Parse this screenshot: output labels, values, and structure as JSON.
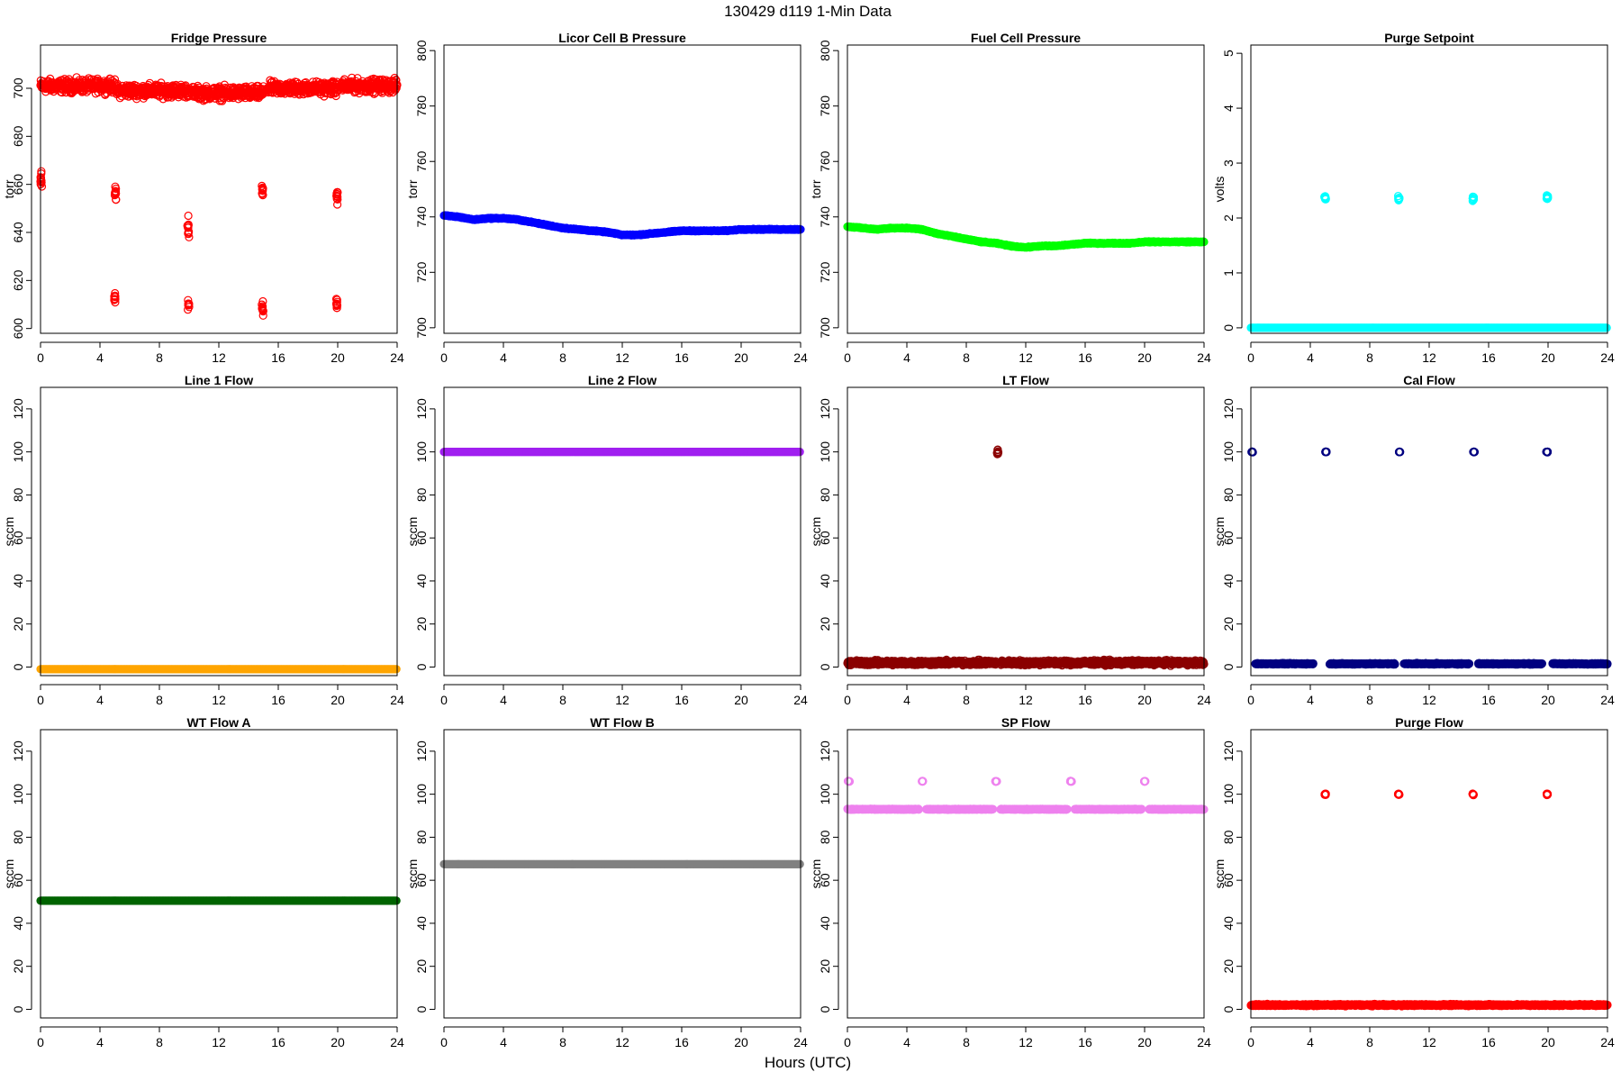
{
  "title": "130429   d119   1-Min Data",
  "x_label": "Hours (UTC)",
  "chart_data": [
    {
      "type": "scatter",
      "title": "Fridge Pressure",
      "ylabel": "torr",
      "color": "#ff0000",
      "marker": "open-circle",
      "xlim": [
        0,
        24
      ],
      "ylim": [
        598,
        718
      ],
      "x_ticks": [
        0,
        4,
        8,
        12,
        16,
        20,
        24
      ],
      "y_ticks": [
        600,
        620,
        640,
        660,
        680,
        700
      ],
      "series": [
        {
          "name": "",
          "segments": [
            [
              0.0,
              5.0,
              701,
              4
            ],
            [
              5.1,
              10.0,
              699,
              4
            ],
            [
              10.2,
              15.0,
              698,
              4
            ],
            [
              15.2,
              20.0,
              700,
              4
            ],
            [
              20.2,
              24.0,
              701,
              4
            ]
          ],
          "clusters": [
            [
              0.05,
              662,
              5
            ],
            [
              5.05,
              657,
              5
            ],
            [
              9.95,
              642,
              10
            ],
            [
              14.95,
              657,
              4
            ],
            [
              19.95,
              655,
              4
            ],
            [
              5.0,
              613,
              3
            ],
            [
              9.95,
              610,
              3
            ],
            [
              14.95,
              608,
              4
            ],
            [
              19.95,
              610,
              3
            ]
          ]
        }
      ]
    },
    {
      "type": "scatter",
      "title": "Licor Cell B Pressure",
      "ylabel": "torr",
      "color": "#0000ff",
      "marker": "open-circle",
      "xlim": [
        0,
        24
      ],
      "ylim": [
        698,
        802
      ],
      "x_ticks": [
        0,
        4,
        8,
        12,
        16,
        20,
        24
      ],
      "y_ticks": [
        700,
        720,
        740,
        760,
        780,
        800
      ],
      "series": [
        {
          "name": "",
          "x": [
            0,
            1,
            2,
            3,
            4,
            5,
            6,
            7,
            8,
            9,
            10,
            11,
            12,
            13,
            14,
            15,
            16,
            17,
            18,
            19,
            20,
            21,
            22,
            23,
            24
          ],
          "y": [
            740.5,
            740,
            739,
            739.5,
            739.5,
            739,
            738,
            737,
            736,
            735.5,
            735,
            734.5,
            733.5,
            733.5,
            734,
            734.5,
            735,
            735,
            735,
            735,
            735.5,
            735.5,
            735.5,
            735.5,
            735.5
          ]
        }
      ]
    },
    {
      "type": "scatter",
      "title": "Fuel Cell Pressure",
      "ylabel": "torr",
      "color": "#00ff00",
      "marker": "open-circle",
      "xlim": [
        0,
        24
      ],
      "ylim": [
        698,
        802
      ],
      "x_ticks": [
        0,
        4,
        8,
        12,
        16,
        20,
        24
      ],
      "y_ticks": [
        700,
        720,
        740,
        760,
        780,
        800
      ],
      "series": [
        {
          "name": "",
          "x": [
            0,
            1,
            2,
            3,
            4,
            5,
            6,
            7,
            8,
            9,
            10,
            11,
            12,
            13,
            14,
            15,
            16,
            17,
            18,
            19,
            20,
            21,
            22,
            23,
            24
          ],
          "y": [
            736.5,
            736,
            735.5,
            736,
            736,
            735.5,
            734,
            733,
            732,
            731,
            730.5,
            729.5,
            729,
            729.5,
            729.5,
            730,
            730.5,
            730.5,
            730.5,
            730.5,
            731,
            731,
            731,
            731,
            731
          ]
        }
      ]
    },
    {
      "type": "scatter",
      "title": "Purge Setpoint",
      "ylabel": "volts",
      "color": "#00ffff",
      "marker": "open-circle",
      "xlim": [
        0,
        24
      ],
      "ylim": [
        -0.1,
        5.15
      ],
      "x_ticks": [
        0,
        4,
        8,
        12,
        16,
        20,
        24
      ],
      "y_ticks": [
        0,
        1,
        2,
        3,
        4,
        5
      ],
      "series": [
        {
          "name": "",
          "line": [
            0,
            24,
            0
          ],
          "clusters": [
            [
              5.0,
              2.36,
              0.06
            ],
            [
              9.95,
              2.36,
              0.06
            ],
            [
              14.95,
              2.36,
              0.06
            ],
            [
              19.95,
              2.38,
              0.06
            ]
          ]
        }
      ]
    },
    {
      "type": "scatter",
      "title": "Line 1 Flow",
      "ylabel": "sccm",
      "color": "#ffa500",
      "marker": "open-circle",
      "xlim": [
        0,
        24
      ],
      "ylim": [
        -4,
        130
      ],
      "x_ticks": [
        0,
        4,
        8,
        12,
        16,
        20,
        24
      ],
      "y_ticks": [
        0,
        20,
        40,
        60,
        80,
        100,
        120
      ],
      "series": [
        {
          "name": "",
          "line": [
            0,
            24,
            -1
          ]
        }
      ]
    },
    {
      "type": "scatter",
      "title": "Line 2 Flow",
      "ylabel": "sccm",
      "color": "#a020f0",
      "marker": "open-circle",
      "xlim": [
        0,
        24
      ],
      "ylim": [
        -4,
        130
      ],
      "x_ticks": [
        0,
        4,
        8,
        12,
        16,
        20,
        24
      ],
      "y_ticks": [
        0,
        20,
        40,
        60,
        80,
        100,
        120
      ],
      "series": [
        {
          "name": "",
          "line": [
            0,
            24,
            100
          ]
        }
      ]
    },
    {
      "type": "scatter",
      "title": "LT Flow",
      "ylabel": "sccm",
      "color": "#8b0000",
      "marker": "open-circle",
      "xlim": [
        0,
        24
      ],
      "ylim": [
        -4,
        130
      ],
      "x_ticks": [
        0,
        4,
        8,
        12,
        16,
        20,
        24
      ],
      "y_ticks": [
        0,
        20,
        40,
        60,
        80,
        100,
        120
      ],
      "series": [
        {
          "name": "",
          "segments": [
            [
              0.0,
              10.0,
              2,
              1.6
            ],
            [
              10.3,
              24.0,
              2,
              1.6
            ]
          ],
          "clusters": [
            [
              10.1,
              100,
              1.5
            ]
          ]
        }
      ]
    },
    {
      "type": "scatter",
      "title": "Cal Flow",
      "ylabel": "sccm",
      "color": "#000080",
      "marker": "open-circle",
      "xlim": [
        0,
        24
      ],
      "ylim": [
        -4,
        130
      ],
      "x_ticks": [
        0,
        4,
        8,
        12,
        16,
        20,
        24
      ],
      "y_ticks": [
        0,
        20,
        40,
        60,
        80,
        100,
        120
      ],
      "series": [
        {
          "name": "",
          "segments": [
            [
              0.3,
              4.2,
              1.5,
              0.4
            ],
            [
              5.3,
              9.7,
              1.5,
              0.4
            ],
            [
              10.3,
              14.7,
              1.5,
              0.4
            ],
            [
              15.3,
              19.6,
              1.5,
              0.4
            ],
            [
              20.3,
              24.0,
              1.5,
              0.4
            ]
          ],
          "clusters": [
            [
              0.1,
              100,
              0.3
            ],
            [
              5.05,
              100,
              0.3
            ],
            [
              10.0,
              100,
              0.3
            ],
            [
              15.0,
              100,
              0.3
            ],
            [
              19.95,
              100,
              0.3
            ]
          ]
        }
      ]
    },
    {
      "type": "scatter",
      "title": "WT Flow A",
      "ylabel": "sccm",
      "color": "#006400",
      "marker": "open-circle",
      "xlim": [
        0,
        24
      ],
      "ylim": [
        -4,
        130
      ],
      "x_ticks": [
        0,
        4,
        8,
        12,
        16,
        20,
        24
      ],
      "y_ticks": [
        0,
        20,
        40,
        60,
        80,
        100,
        120
      ],
      "series": [
        {
          "name": "",
          "line": [
            0,
            24,
            50.5
          ]
        }
      ]
    },
    {
      "type": "scatter",
      "title": "WT Flow B",
      "ylabel": "sccm",
      "color": "#808080",
      "marker": "open-circle",
      "xlim": [
        0,
        24
      ],
      "ylim": [
        -4,
        130
      ],
      "x_ticks": [
        0,
        4,
        8,
        12,
        16,
        20,
        24
      ],
      "y_ticks": [
        0,
        20,
        40,
        60,
        80,
        100,
        120
      ],
      "series": [
        {
          "name": "",
          "line": [
            0,
            24,
            67.5
          ]
        }
      ]
    },
    {
      "type": "scatter",
      "title": "SP Flow",
      "ylabel": "sccm",
      "color": "#ee82ee",
      "marker": "open-circle",
      "xlim": [
        0,
        24
      ],
      "ylim": [
        -4,
        130
      ],
      "x_ticks": [
        0,
        4,
        8,
        12,
        16,
        20,
        24
      ],
      "y_ticks": [
        0,
        20,
        40,
        60,
        80,
        100,
        120
      ],
      "series": [
        {
          "name": "",
          "segments": [
            [
              0.0,
              4.8,
              93,
              0.3
            ],
            [
              5.3,
              9.8,
              93,
              0.3
            ],
            [
              10.3,
              14.8,
              93,
              0.3
            ],
            [
              15.3,
              19.8,
              93,
              0.3
            ],
            [
              20.3,
              24.0,
              93,
              0.3
            ]
          ],
          "clusters": [
            [
              0.1,
              106,
              0.3
            ],
            [
              5.05,
              106,
              0.3
            ],
            [
              10.0,
              106,
              0.3
            ],
            [
              15.05,
              106,
              0.3
            ],
            [
              20.0,
              106,
              0.3
            ]
          ]
        }
      ]
    },
    {
      "type": "scatter",
      "title": "Purge Flow",
      "ylabel": "sccm",
      "color": "#ff0000",
      "marker": "open-circle",
      "xlim": [
        0,
        24
      ],
      "ylim": [
        -4,
        130
      ],
      "x_ticks": [
        0,
        4,
        8,
        12,
        16,
        20,
        24
      ],
      "y_ticks": [
        0,
        20,
        40,
        60,
        80,
        100,
        120
      ],
      "series": [
        {
          "name": "",
          "segments": [
            [
              0.0,
              24.0,
              2,
              0.6
            ]
          ],
          "clusters": [
            [
              5.0,
              100,
              0.6
            ],
            [
              9.95,
              100,
              0.6
            ],
            [
              14.95,
              100,
              0.6
            ],
            [
              19.95,
              100,
              0.6
            ]
          ]
        }
      ]
    }
  ]
}
